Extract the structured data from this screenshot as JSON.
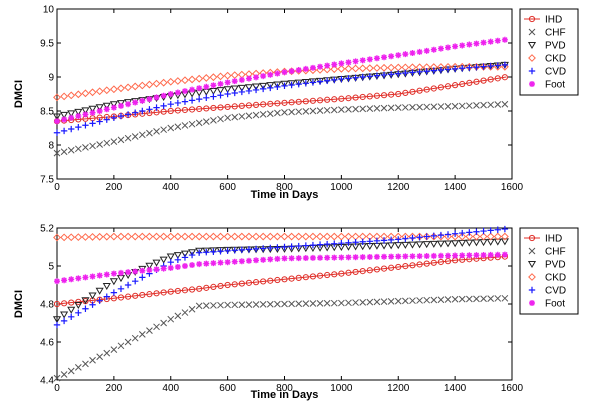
{
  "chart_data": [
    {
      "type": "line",
      "xlabel": "Time in Days",
      "ylabel": "DMCI",
      "xlim": [
        0,
        1600
      ],
      "ylim": [
        7.5,
        10
      ],
      "xticks": [
        0,
        200,
        400,
        600,
        800,
        1000,
        1200,
        1400,
        1600
      ],
      "yticks": [
        7.5,
        8,
        8.5,
        9,
        9.5,
        10
      ],
      "ytick_labels": [
        "7.5",
        "8",
        "8.5",
        "9",
        "9.5",
        "10"
      ],
      "legend_position": "top-right",
      "x": [
        0,
        200,
        400,
        600,
        800,
        1000,
        1200,
        1400,
        1580
      ],
      "series": [
        {
          "name": "IHD",
          "marker": "circle-line",
          "color": "#e0302a",
          "values": [
            8.35,
            8.42,
            8.5,
            8.56,
            8.62,
            8.68,
            8.75,
            8.88,
            9.0
          ]
        },
        {
          "name": "CHF",
          "marker": "x",
          "color": "#555555",
          "values": [
            7.88,
            8.05,
            8.25,
            8.4,
            8.48,
            8.52,
            8.55,
            8.57,
            8.6
          ]
        },
        {
          "name": "PVD",
          "marker": "triangle-down",
          "color": "#222222",
          "values": [
            8.42,
            8.6,
            8.72,
            8.82,
            8.9,
            8.97,
            9.04,
            9.12,
            9.18
          ]
        },
        {
          "name": "CKD",
          "marker": "diamond",
          "color": "#ff6a4d",
          "values": [
            8.7,
            8.82,
            8.93,
            9.02,
            9.08,
            9.12,
            9.14,
            9.15,
            9.15
          ]
        },
        {
          "name": "CVD",
          "marker": "plus",
          "color": "#1a1aff",
          "values": [
            8.18,
            8.4,
            8.6,
            8.75,
            8.87,
            8.97,
            9.05,
            9.12,
            9.18
          ]
        },
        {
          "name": "Foot",
          "marker": "star",
          "color": "#ee22ee",
          "values": [
            8.35,
            8.55,
            8.75,
            8.92,
            9.07,
            9.2,
            9.32,
            9.45,
            9.55
          ]
        }
      ]
    },
    {
      "type": "line",
      "xlabel": "Time in Days",
      "ylabel": "DMCI",
      "xlim": [
        0,
        1600
      ],
      "ylim": [
        4.4,
        5.2
      ],
      "xticks": [
        0,
        200,
        400,
        600,
        800,
        1000,
        1200,
        1400,
        1600
      ],
      "yticks": [
        4.4,
        4.6,
        4.8,
        5,
        5.2
      ],
      "ytick_labels": [
        "4.4",
        "4.6",
        "4.8",
        "5",
        "5.2"
      ],
      "legend_position": "top-right",
      "x": [
        0,
        200,
        400,
        500,
        600,
        800,
        1000,
        1200,
        1400,
        1580
      ],
      "series": [
        {
          "name": "IHD",
          "marker": "circle-line",
          "color": "#e0302a",
          "values": [
            4.8,
            4.83,
            4.865,
            4.88,
            4.9,
            4.93,
            4.96,
            4.995,
            5.03,
            5.05
          ]
        },
        {
          "name": "CHF",
          "marker": "x",
          "color": "#555555",
          "values": [
            4.41,
            4.56,
            4.72,
            4.79,
            4.795,
            4.8,
            4.805,
            4.815,
            4.825,
            4.83
          ]
        },
        {
          "name": "PVD",
          "marker": "triangle-down",
          "color": "#222222",
          "values": [
            4.72,
            4.92,
            5.05,
            5.08,
            5.085,
            5.09,
            5.1,
            5.11,
            5.12,
            5.13
          ]
        },
        {
          "name": "CKD",
          "marker": "diamond",
          "color": "#ff6a4d",
          "values": [
            5.15,
            5.155,
            5.155,
            5.155,
            5.155,
            5.155,
            5.155,
            5.155,
            5.155,
            5.155
          ]
        },
        {
          "name": "CVD",
          "marker": "plus",
          "color": "#1a1aff",
          "values": [
            4.69,
            4.86,
            5.02,
            5.07,
            5.08,
            5.1,
            5.12,
            5.14,
            5.17,
            5.195
          ]
        },
        {
          "name": "Foot",
          "marker": "star",
          "color": "#ee22ee",
          "values": [
            4.92,
            4.96,
            4.99,
            5.01,
            5.02,
            5.04,
            5.045,
            5.05,
            5.055,
            5.06
          ]
        }
      ]
    }
  ]
}
